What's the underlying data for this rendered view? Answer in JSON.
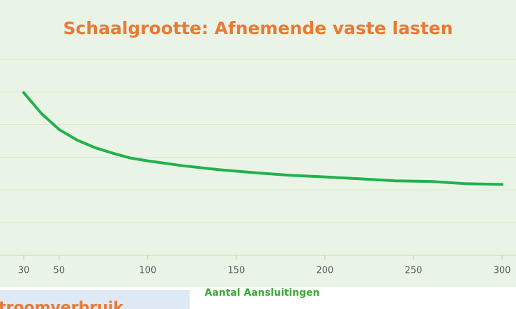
{
  "chart_data": {
    "type": "line",
    "title": "Schaalgrootte: Afnemende vaste lasten",
    "x_label": "Aantal Aansluitingen",
    "annotation": "troomverbruik",
    "x": [
      30,
      40,
      50,
      60,
      70,
      80,
      90,
      100,
      120,
      140,
      160,
      180,
      200,
      220,
      240,
      260,
      280,
      300
    ],
    "series": [
      {
        "name": "vaste lasten",
        "color": "#22b14c",
        "values": [
          4.98,
          4.34,
          3.85,
          3.53,
          3.3,
          3.13,
          2.98,
          2.89,
          2.74,
          2.62,
          2.53,
          2.45,
          2.4,
          2.34,
          2.28,
          2.26,
          2.19,
          2.17
        ]
      }
    ],
    "xlim": [
      30,
      300
    ],
    "xticks": [
      30,
      50,
      100,
      150,
      200,
      250,
      300
    ],
    "ylim": [
      0,
      6
    ],
    "yticks": [
      0,
      1,
      2,
      3,
      4,
      5,
      6
    ],
    "grid": true
  }
}
